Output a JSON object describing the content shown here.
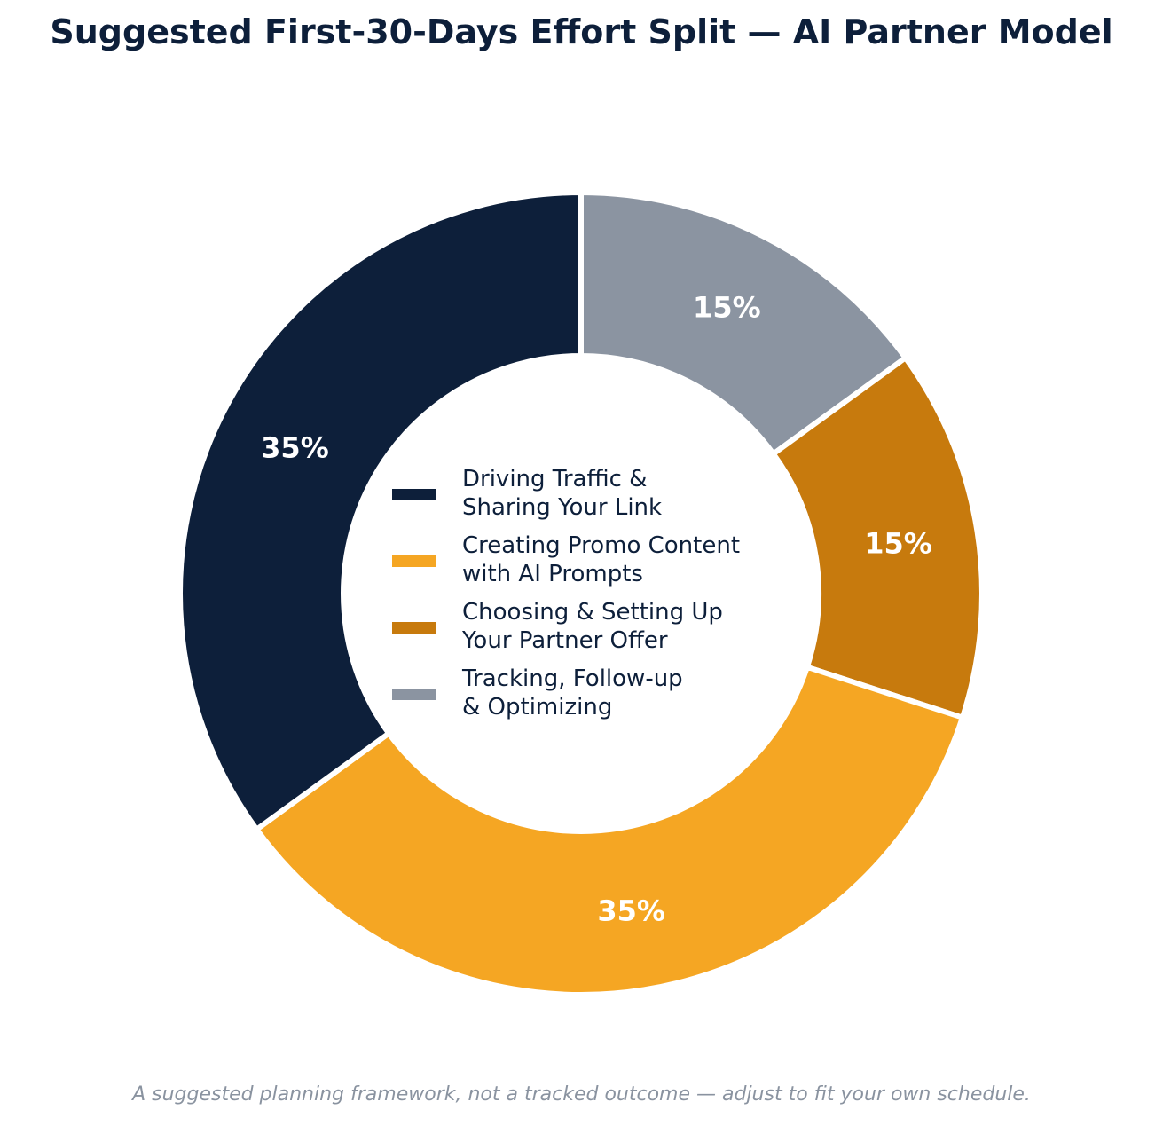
{
  "chart_data": {
    "type": "pie",
    "style": "donut",
    "title": "Suggested First-30-Days Effort Split — AI Partner Model",
    "footnote": "A suggested planning framework, not a tracked outcome — adjust to fit your own schedule.",
    "legend_position": "center",
    "slices": [
      {
        "label_lines": [
          "Driving Traffic &",
          "Sharing Your Link"
        ],
        "value": 35,
        "display": "35%",
        "color": "#0d1f3a"
      },
      {
        "label_lines": [
          "Creating Promo Content",
          "with AI Prompts"
        ],
        "value": 35,
        "display": "35%",
        "color": "#f5a623"
      },
      {
        "label_lines": [
          "Choosing & Setting Up",
          "Your Partner Offer"
        ],
        "value": 15,
        "display": "15%",
        "color": "#c77a0d"
      },
      {
        "label_lines": [
          "Tracking, Follow-up",
          "& Optimizing"
        ],
        "value": 15,
        "display": "15%",
        "color": "#8b94a1"
      }
    ],
    "slice_order_clockwise_from_top": [
      3,
      2,
      1,
      0
    ]
  }
}
